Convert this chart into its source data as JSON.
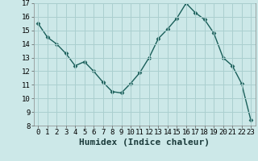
{
  "x": [
    0,
    1,
    2,
    3,
    4,
    5,
    6,
    7,
    8,
    9,
    10,
    11,
    12,
    13,
    14,
    15,
    16,
    17,
    18,
    19,
    20,
    21,
    22,
    23
  ],
  "y": [
    15.5,
    14.5,
    14.0,
    13.3,
    12.4,
    12.7,
    12.0,
    11.2,
    10.5,
    10.4,
    11.1,
    11.9,
    13.0,
    14.4,
    15.1,
    15.9,
    17.0,
    16.3,
    15.8,
    14.8,
    13.0,
    12.4,
    11.1,
    8.4
  ],
  "xlabel": "Humidex (Indice chaleur)",
  "xlim_min": -0.5,
  "xlim_max": 23.5,
  "ylim_min": 8,
  "ylim_max": 17,
  "yticks": [
    8,
    9,
    10,
    11,
    12,
    13,
    14,
    15,
    16,
    17
  ],
  "xticks": [
    0,
    1,
    2,
    3,
    4,
    5,
    6,
    7,
    8,
    9,
    10,
    11,
    12,
    13,
    14,
    15,
    16,
    17,
    18,
    19,
    20,
    21,
    22,
    23
  ],
  "line_color": "#1a5f5a",
  "marker": "D",
  "marker_size": 2.5,
  "bg_color": "#cce8e8",
  "grid_color": "#aacfcf",
  "xlabel_fontsize": 8,
  "tick_fontsize": 6.5,
  "linewidth": 1.0
}
